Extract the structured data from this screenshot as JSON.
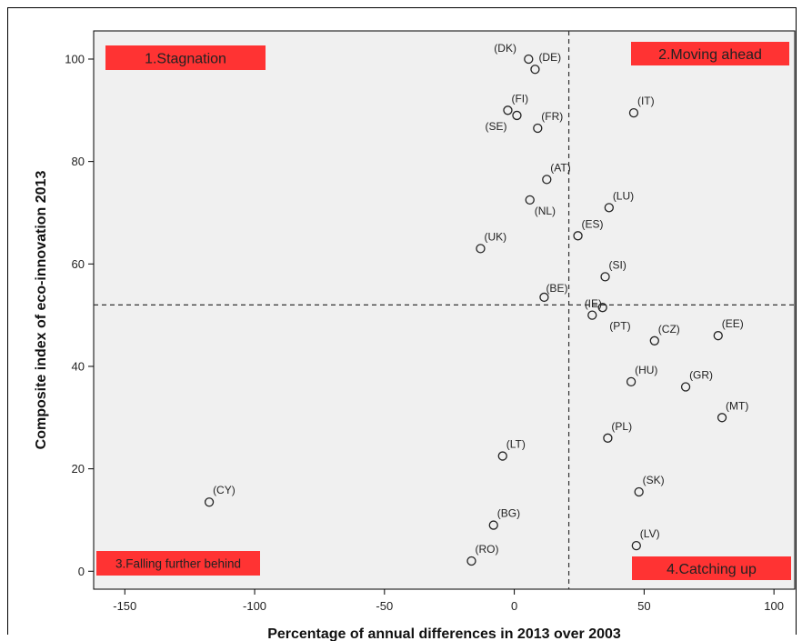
{
  "chart_data": {
    "type": "scatter",
    "title": "",
    "xlabel": "Percentage of annual differences in 2013 over 2003",
    "ylabel": "Composite index of eco-innovation 2013",
    "xlim": [
      -162,
      108
    ],
    "ylim": [
      -3.5,
      105.5
    ],
    "xticks": [
      -150,
      -100,
      -50,
      0,
      50,
      100
    ],
    "yticks": [
      0,
      20,
      40,
      60,
      80,
      100
    ],
    "grid": false,
    "background_color": "#f0f0f0",
    "reference_lines": {
      "x": 21,
      "y": 52
    },
    "quadrant_labels": [
      {
        "text": "1.Stagnation",
        "color": "#ff3333",
        "position": "top-left"
      },
      {
        "text": "2.Moving ahead",
        "color": "#ff3333",
        "position": "top-right"
      },
      {
        "text": "3.Falling further behind",
        "color": "#ff3333",
        "position": "bottom-left"
      },
      {
        "text": "4.Catching up",
        "color": "#ff3333",
        "position": "bottom-right"
      }
    ],
    "points": [
      {
        "label": "(DK)",
        "x": 5.5,
        "y": 100
      },
      {
        "label": "(DE)",
        "x": 8,
        "y": 98
      },
      {
        "label": "(FI)",
        "x": -2.5,
        "y": 90
      },
      {
        "label": "(SE)",
        "x": 1,
        "y": 89
      },
      {
        "label": "(FR)",
        "x": 9,
        "y": 86.5
      },
      {
        "label": "(IT)",
        "x": 46,
        "y": 89.5
      },
      {
        "label": "(AT)",
        "x": 12.5,
        "y": 76.5
      },
      {
        "label": "(NL)",
        "x": 6,
        "y": 72.5
      },
      {
        "label": "(LU)",
        "x": 36.5,
        "y": 71
      },
      {
        "label": "(ES)",
        "x": 24.5,
        "y": 65.5
      },
      {
        "label": "(UK)",
        "x": -13,
        "y": 63
      },
      {
        "label": "(SI)",
        "x": 35,
        "y": 57.5
      },
      {
        "label": "(BE)",
        "x": 11.5,
        "y": 53.5
      },
      {
        "label": "(IE)",
        "x": 34,
        "y": 51.5
      },
      {
        "label": "(PT)",
        "x": 30,
        "y": 50
      },
      {
        "label": "(CZ)",
        "x": 54,
        "y": 45
      },
      {
        "label": "(EE)",
        "x": 78.5,
        "y": 46
      },
      {
        "label": "(HU)",
        "x": 45,
        "y": 37
      },
      {
        "label": "(GR)",
        "x": 66,
        "y": 36
      },
      {
        "label": "(MT)",
        "x": 80,
        "y": 30
      },
      {
        "label": "(PL)",
        "x": 36,
        "y": 26
      },
      {
        "label": "(LT)",
        "x": -4.5,
        "y": 22.5
      },
      {
        "label": "(SK)",
        "x": 48,
        "y": 15.5
      },
      {
        "label": "(CY)",
        "x": -117.5,
        "y": 13.5
      },
      {
        "label": "(BG)",
        "x": -8,
        "y": 9
      },
      {
        "label": "(LV)",
        "x": 47,
        "y": 5
      },
      {
        "label": "(RO)",
        "x": -16.5,
        "y": 2
      }
    ]
  }
}
